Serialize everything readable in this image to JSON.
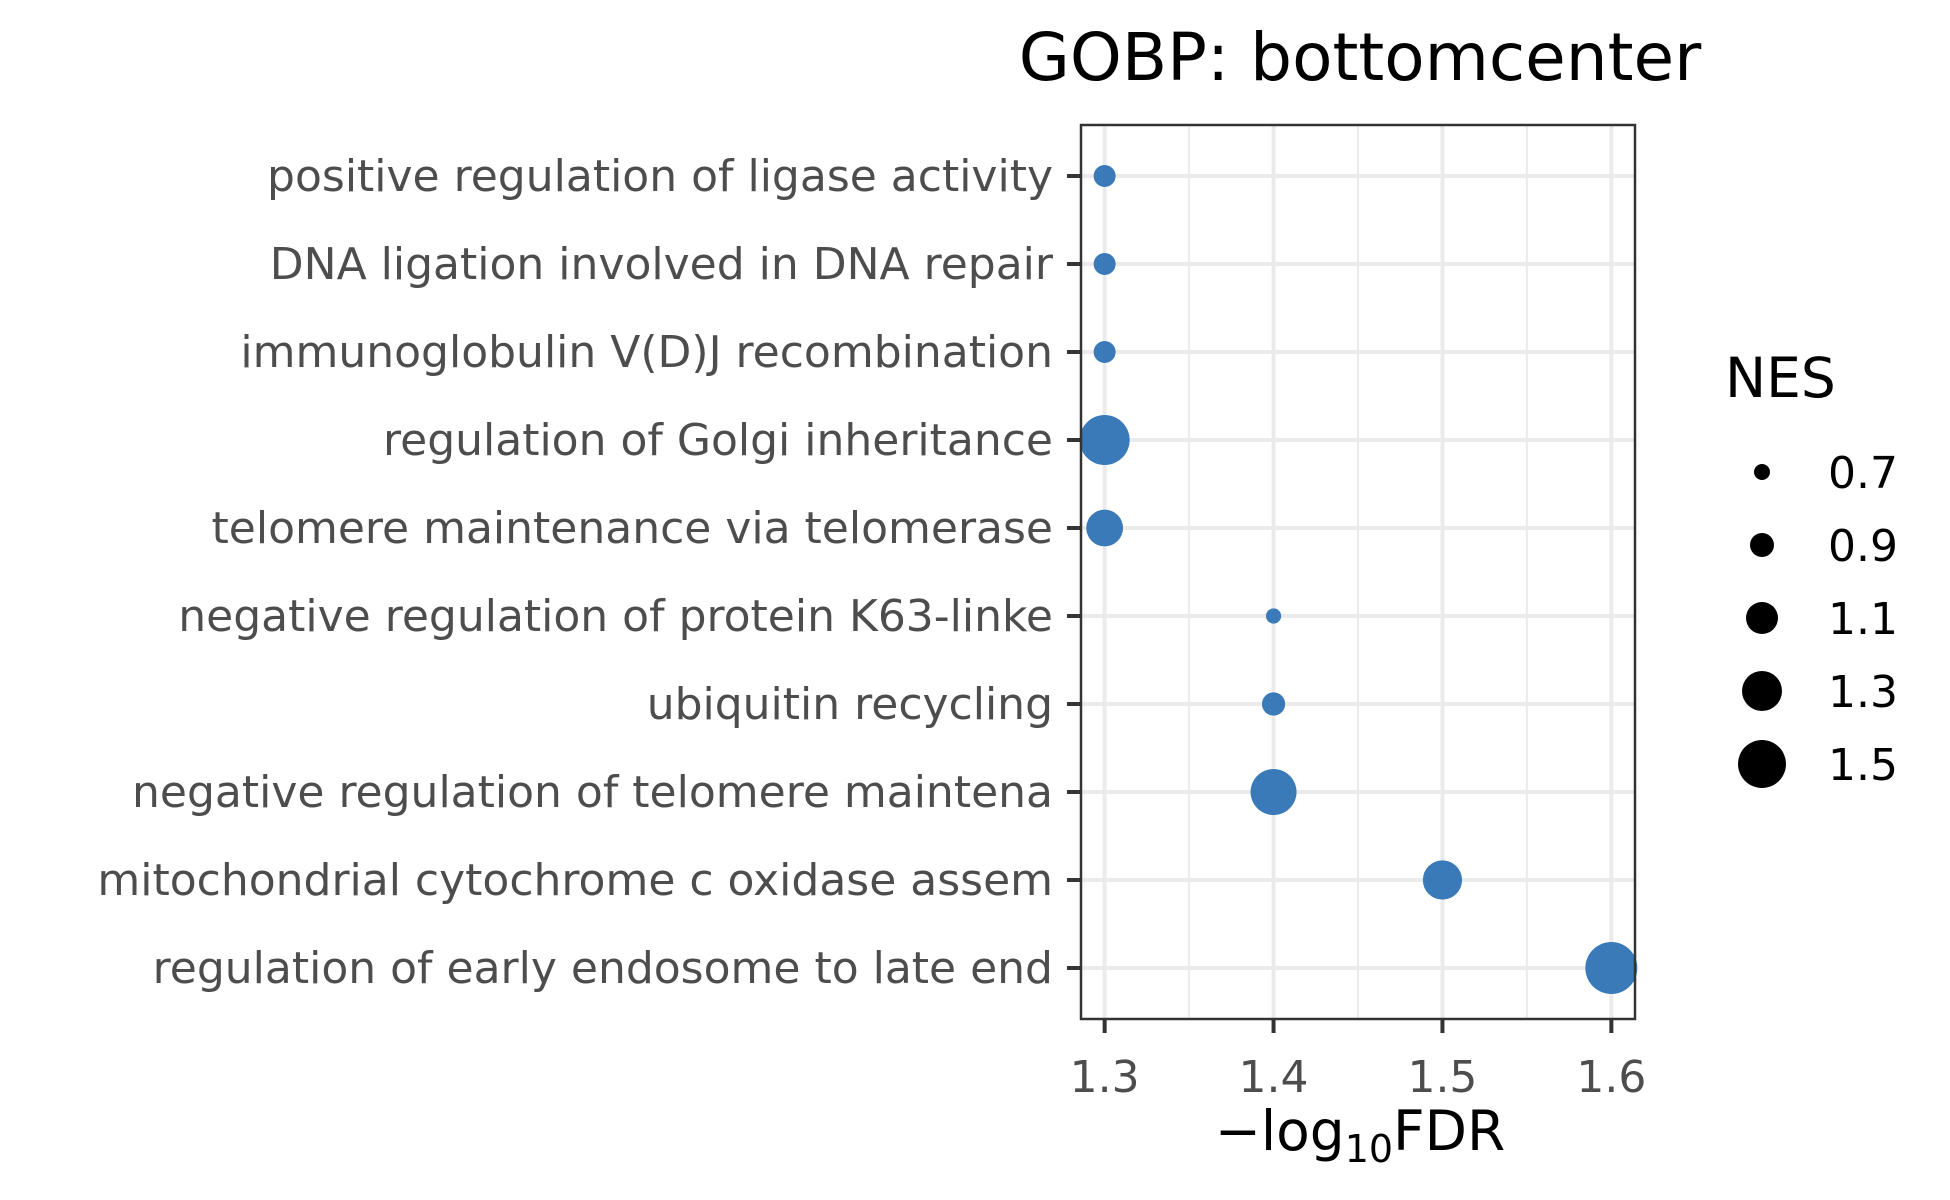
{
  "chart_data": {
    "type": "scatter",
    "title": "GOBP: bottomcenter",
    "xlabel": {
      "prefix": "−log",
      "subscript": "10",
      "suffix": "FDR"
    },
    "ylabel": "",
    "xlim": [
      1.286,
      1.614
    ],
    "xticks": [
      1.3,
      1.4,
      1.5,
      1.6
    ],
    "xtick_labels": [
      "1.3",
      "1.4",
      "1.5",
      "1.6"
    ],
    "grid": true,
    "point_color": "#3a7ab8",
    "categories": [
      "positive regulation of ligase activity",
      "DNA ligation involved in DNA repair",
      "immunoglobulin V(D)J recombination",
      "regulation of Golgi inheritance",
      "telomere maintenance via telomerase",
      "negative regulation of protein K63-linke",
      "ubiquitin recycling",
      "negative regulation of telomere maintena",
      "mitochondrial cytochrome c oxidase assem",
      "regulation of early endosome to late end"
    ],
    "points": [
      {
        "category": "positive regulation of ligase activity",
        "x": 1.3,
        "nes": 0.85
      },
      {
        "category": "DNA ligation involved in DNA repair",
        "x": 1.3,
        "nes": 0.85
      },
      {
        "category": "immunoglobulin V(D)J recombination",
        "x": 1.3,
        "nes": 0.85
      },
      {
        "category": "regulation of Golgi inheritance",
        "x": 1.3,
        "nes": 1.55
      },
      {
        "category": "telomere maintenance via telomerase",
        "x": 1.3,
        "nes": 1.22
      },
      {
        "category": "negative regulation of protein K63-linke",
        "x": 1.4,
        "nes": 0.68
      },
      {
        "category": "ubiquitin recycling",
        "x": 1.4,
        "nes": 0.88
      },
      {
        "category": "negative regulation of telomere maintena",
        "x": 1.4,
        "nes": 1.45
      },
      {
        "category": "mitochondrial cytochrome c oxidase assem",
        "x": 1.5,
        "nes": 1.28
      },
      {
        "category": "regulation of early endosome to late end",
        "x": 1.6,
        "nes": 1.6
      }
    ],
    "legend": {
      "title": "NES",
      "position": "right",
      "values": [
        0.7,
        0.9,
        1.1,
        1.3,
        1.5
      ],
      "labels": [
        "0.7",
        "0.9",
        "1.1",
        "1.3",
        "1.5"
      ],
      "color": "#000000"
    }
  }
}
